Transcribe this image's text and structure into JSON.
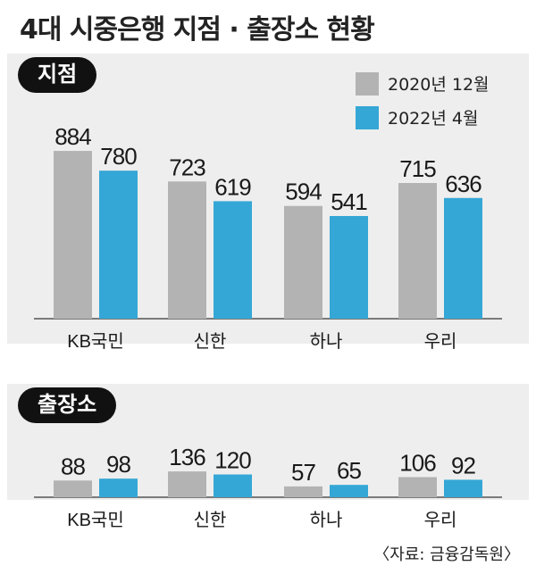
{
  "title": "4대 시중은행 지점 · 출장소 현황",
  "colors": {
    "series_2020": "#b3b3b3",
    "series_2022": "#35a7d6",
    "panel": "#eeeeee",
    "pill": "#111111"
  },
  "legend": [
    {
      "label": "2020년 12월",
      "color": "#b3b3b3"
    },
    {
      "label": "2022년 4월",
      "color": "#35a7d6"
    }
  ],
  "source": "〈자료: 금융감독원〉",
  "chart_data": [
    {
      "type": "bar",
      "title": "지점",
      "categories": [
        "KB국민",
        "신한",
        "하나",
        "우리"
      ],
      "series": [
        {
          "name": "2020년 12월",
          "values": [
            884,
            723,
            594,
            715
          ]
        },
        {
          "name": "2022년 4월",
          "values": [
            780,
            619,
            541,
            636
          ]
        }
      ],
      "ylim": [
        0,
        1000
      ],
      "grid": false,
      "legend": "top-right"
    },
    {
      "type": "bar",
      "title": "출장소",
      "categories": [
        "KB국민",
        "신한",
        "하나",
        "우리"
      ],
      "series": [
        {
          "name": "2020년 12월",
          "values": [
            88,
            136,
            57,
            106
          ]
        },
        {
          "name": "2022년 4월",
          "values": [
            98,
            120,
            65,
            92
          ]
        }
      ],
      "ylim": [
        0,
        1000
      ],
      "grid": false
    }
  ]
}
